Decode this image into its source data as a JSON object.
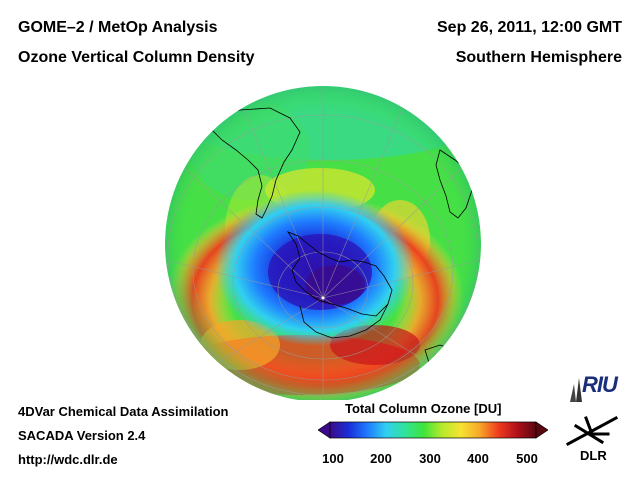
{
  "header": {
    "title_left": "GOME–2 / MetOp Analysis",
    "subtitle_left": "Ozone Vertical Column Density",
    "date_right": "Sep 26, 2011, 12:00 GMT",
    "region_right": "Southern Hemisphere"
  },
  "footer": {
    "line1": "4DVar Chemical Data Assimilation",
    "line2": "SACADA Version 2.4",
    "line3": "http://wdc.dlr.de"
  },
  "colorbar": {
    "title": "Total Column Ozone [DU]",
    "ticks": [
      "100",
      "200",
      "300",
      "400",
      "500"
    ],
    "range": [
      100,
      500
    ],
    "stops": [
      "#3b0a8a",
      "#1a2fd8",
      "#1e7bff",
      "#31d0f0",
      "#2fe39a",
      "#3ee43a",
      "#b6ea2c",
      "#f7e331",
      "#f7a72a",
      "#ef3b1e",
      "#b0101a",
      "#5a0710"
    ]
  },
  "logos": {
    "riu": "RIU",
    "dlr": "DLR"
  },
  "map": {
    "projection": "orthographic",
    "hemisphere": "south"
  }
}
